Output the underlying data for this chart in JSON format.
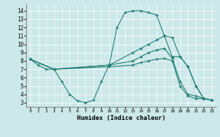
{
  "xlabel": "Humidex (Indice chaleur)",
  "xlim": [
    -0.5,
    23.5
  ],
  "ylim": [
    2.5,
    14.8
  ],
  "yticks": [
    3,
    4,
    5,
    6,
    7,
    8,
    9,
    10,
    11,
    12,
    13,
    14
  ],
  "xticks": [
    0,
    1,
    2,
    3,
    4,
    5,
    6,
    7,
    8,
    9,
    10,
    11,
    12,
    13,
    14,
    15,
    16,
    17,
    18,
    19,
    20,
    21,
    22,
    23
  ],
  "bg_color": "#cce8e8",
  "line_color": "#1a7a6e",
  "lines": [
    {
      "x": [
        0,
        1,
        2,
        3,
        4,
        5,
        6,
        7,
        8,
        9,
        10,
        11,
        12,
        13,
        14,
        15,
        16,
        17,
        18,
        19,
        20,
        21,
        22,
        23
      ],
      "y": [
        8.2,
        7.5,
        7.0,
        7.0,
        5.5,
        4.0,
        3.2,
        3.0,
        3.3,
        5.5,
        7.5,
        12.0,
        13.8,
        14.0,
        14.0,
        13.8,
        13.5,
        11.0,
        8.5,
        8.5,
        7.3,
        5.0,
        3.5,
        3.3
      ]
    },
    {
      "x": [
        0,
        3,
        10,
        13,
        14,
        15,
        16,
        17,
        18,
        19,
        20,
        21,
        22,
        23
      ],
      "y": [
        8.2,
        7.0,
        7.5,
        9.0,
        9.5,
        10.0,
        10.5,
        11.0,
        10.8,
        8.5,
        7.3,
        5.0,
        3.5,
        3.3
      ]
    },
    {
      "x": [
        0,
        3,
        10,
        13,
        14,
        15,
        16,
        17,
        18,
        19,
        20,
        21,
        22,
        23
      ],
      "y": [
        8.2,
        7.0,
        7.5,
        8.0,
        8.5,
        9.0,
        9.3,
        9.5,
        8.3,
        5.5,
        4.0,
        3.8,
        3.5,
        3.3
      ]
    },
    {
      "x": [
        0,
        3,
        10,
        13,
        14,
        15,
        16,
        17,
        18,
        19,
        20,
        21,
        22,
        23
      ],
      "y": [
        8.2,
        7.0,
        7.3,
        7.5,
        7.8,
        8.0,
        8.2,
        8.3,
        8.0,
        5.0,
        3.8,
        3.5,
        3.5,
        3.3
      ]
    }
  ]
}
